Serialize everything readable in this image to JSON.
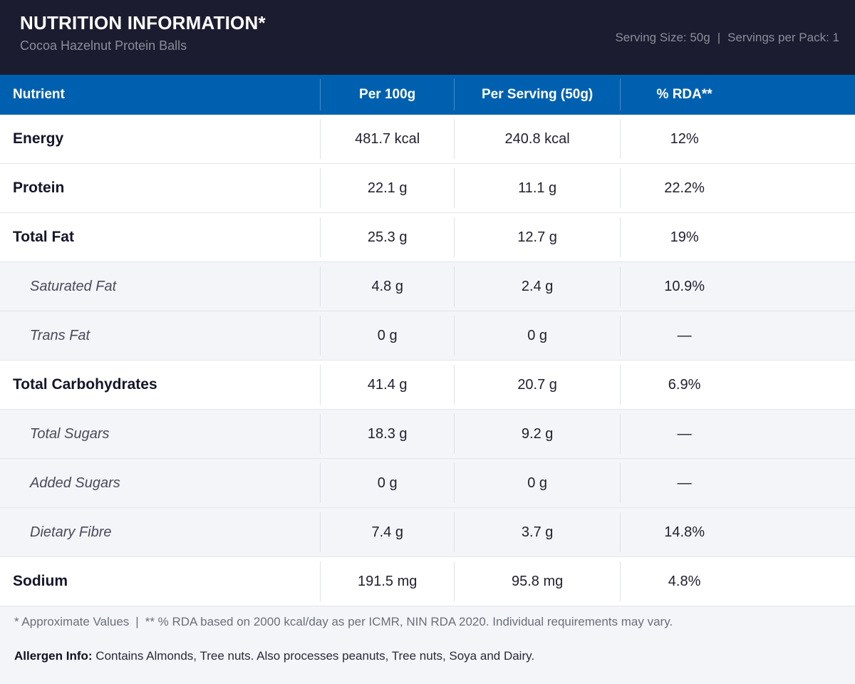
{
  "header": {
    "title": "NUTRITION INFORMATION*",
    "subtitle": "Cocoa Hazelnut Protein Balls",
    "serving_size": "Serving Size: 50g",
    "separator": "|",
    "servings_per_pack": "Servings per Pack: 1"
  },
  "table": {
    "columns": [
      "Nutrient",
      "Per 100g",
      "Per Serving (50g)",
      "% RDA**"
    ],
    "rows": [
      {
        "name": "Energy",
        "per100": "481.7 kcal",
        "serving": "240.8 kcal",
        "rda": "12%",
        "sub": false
      },
      {
        "name": "Protein",
        "per100": "22.1 g",
        "serving": "11.1 g",
        "rda": "22.2%",
        "sub": false
      },
      {
        "name": "Total Fat",
        "per100": "25.3 g",
        "serving": "12.7 g",
        "rda": "19%",
        "sub": false
      },
      {
        "name": "Saturated Fat",
        "per100": "4.8 g",
        "serving": "2.4 g",
        "rda": "10.9%",
        "sub": true
      },
      {
        "name": "Trans Fat",
        "per100": "0 g",
        "serving": "0 g",
        "rda": "—",
        "sub": true
      },
      {
        "name": "Total Carbohydrates",
        "per100": "41.4 g",
        "serving": "20.7 g",
        "rda": "6.9%",
        "sub": false
      },
      {
        "name": "Total Sugars",
        "per100": "18.3 g",
        "serving": "9.2 g",
        "rda": "—",
        "sub": true
      },
      {
        "name": "Added Sugars",
        "per100": "0 g",
        "serving": "0 g",
        "rda": "—",
        "sub": true
      },
      {
        "name": "Dietary Fibre",
        "per100": "7.4 g",
        "serving": "3.7 g",
        "rda": "14.8%",
        "sub": true
      },
      {
        "name": "Sodium",
        "per100": "191.5 mg",
        "serving": "95.8 mg",
        "rda": "4.8%",
        "sub": false
      }
    ]
  },
  "footer": {
    "note_approx": "* Approximate Values",
    "separator": "|",
    "note_rda": "** % RDA based on 2000 kcal/day as per ICMR, NIN RDA 2020. Individual requirements may vary.",
    "allergen_label": "Allergen Info:",
    "allergen_text": " Contains Almonds, Tree nuts. Also processes peanuts, Tree nuts, Soya and Dairy."
  },
  "colors": {
    "header_bg": "#1c1c30",
    "table_head_bg": "#0060b0",
    "sub_row_bg": "#f4f5f9"
  }
}
